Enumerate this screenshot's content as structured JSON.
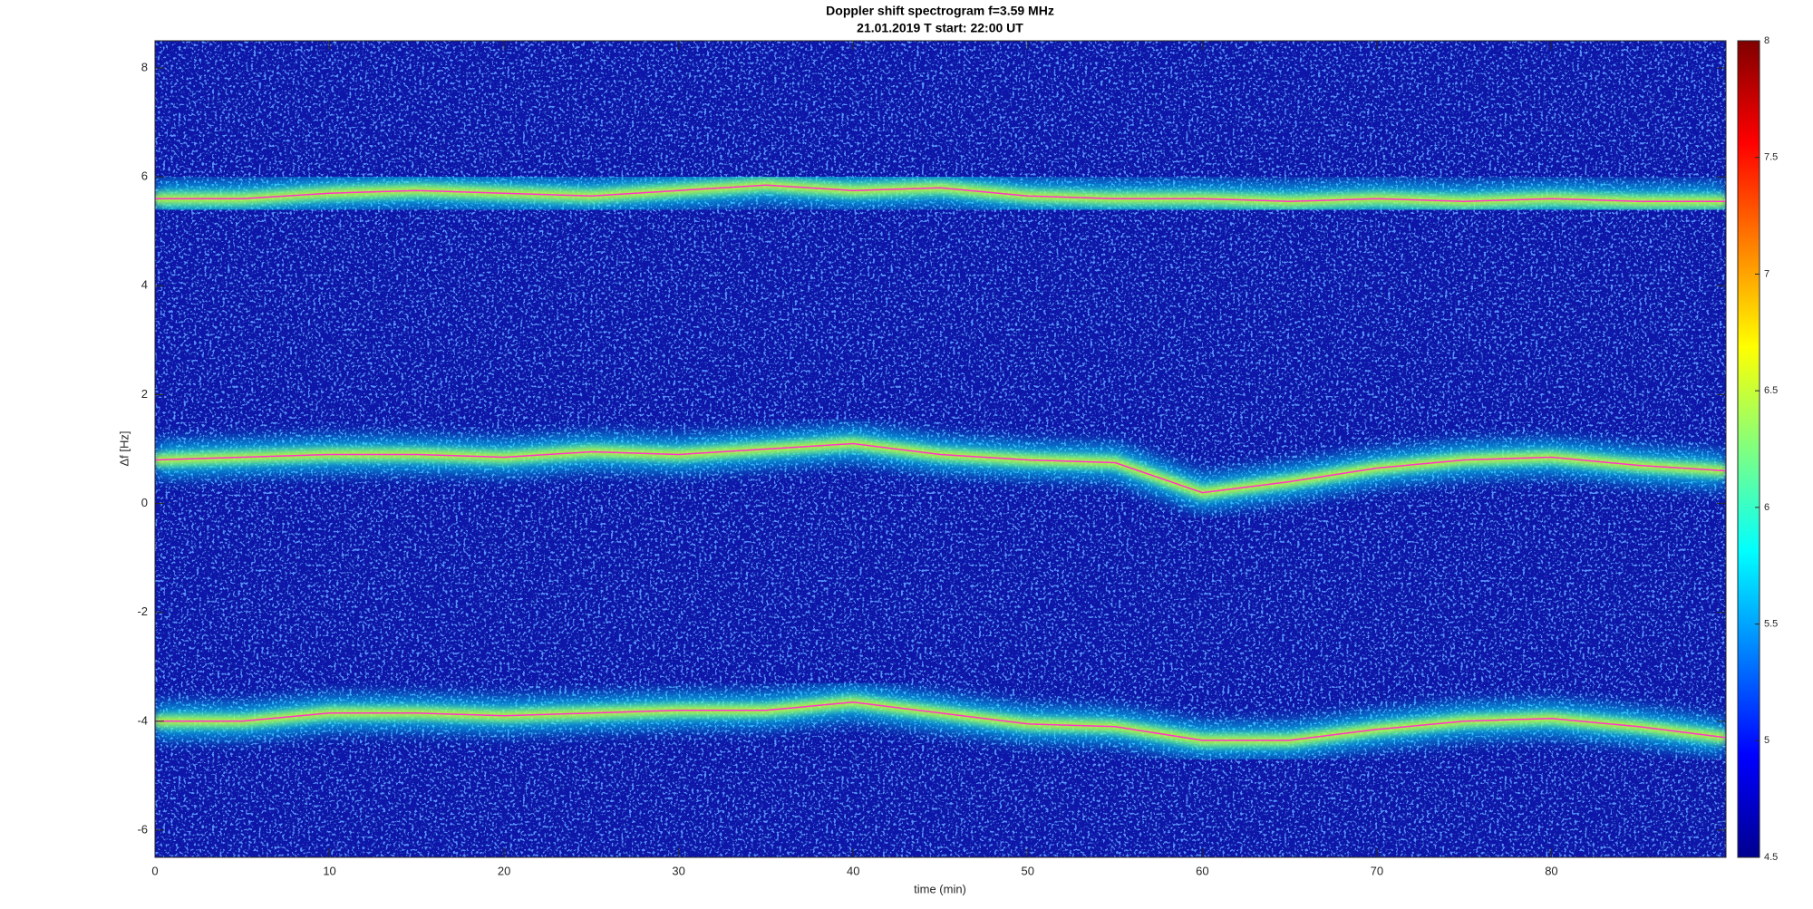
{
  "chart_data": {
    "type": "spectrogram",
    "title": "Doppler shift spectrogram f=3.59 MHz",
    "subtitle": "21.01.2019   T start: 22:00 UT",
    "x_label": "time (min)",
    "y_label": "Δf [Hz]",
    "x": [
      0,
      5,
      10,
      15,
      20,
      25,
      30,
      35,
      40,
      45,
      50,
      55,
      60,
      65,
      70,
      75,
      80,
      85,
      90
    ],
    "series": [
      {
        "color": "#ff33cc",
        "values": [
          5.6,
          5.6,
          5.7,
          5.75,
          5.7,
          5.65,
          5.75,
          5.85,
          5.75,
          5.8,
          5.65,
          5.6,
          5.6,
          5.55,
          5.6,
          5.55,
          5.6,
          5.55,
          5.55
        ]
      },
      {
        "color": "#ff33cc",
        "values": [
          0.8,
          0.85,
          0.9,
          0.9,
          0.85,
          0.95,
          0.9,
          1.0,
          1.1,
          0.9,
          0.8,
          0.75,
          0.2,
          0.4,
          0.65,
          0.8,
          0.85,
          0.7,
          0.6
        ]
      },
      {
        "color": "#ff33cc",
        "values": [
          -4,
          -4,
          -3.85,
          -3.85,
          -3.9,
          -3.85,
          -3.8,
          -3.8,
          -3.65,
          -3.85,
          -4.05,
          -4.1,
          -4.35,
          -4.35,
          -4.15,
          -4.0,
          -3.95,
          -4.1,
          -4.3
        ]
      }
    ],
    "xlim": [
      0,
      90
    ],
    "xticks": [
      0,
      10,
      20,
      30,
      40,
      50,
      60,
      70,
      80
    ],
    "ylim": [
      -6.5,
      8.5
    ],
    "yticks": [
      -6,
      -4,
      -2,
      0,
      2,
      4,
      6,
      8
    ],
    "background_color": "#0a12a8",
    "colorbar": {
      "lim": [
        4.5,
        8
      ],
      "ticks": [
        4.5,
        5,
        5.5,
        6,
        6.5,
        7,
        7.5,
        8
      ],
      "colormap": [
        "#00008f",
        "#0000ff",
        "#0080ff",
        "#00ffff",
        "#80ff80",
        "#ffff00",
        "#ff8000",
        "#ff0000",
        "#800000"
      ]
    }
  }
}
